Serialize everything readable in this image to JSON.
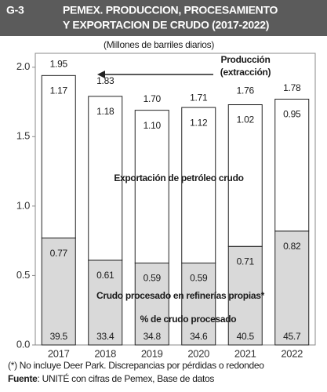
{
  "chart_data": {
    "type": "stacked_bar",
    "label": "G-3",
    "title": [
      "PEMEX. PRODUCCION, PROCESAMIENTO",
      "Y EXPORTACION DE CRUDO (2017-2022)"
    ],
    "subtitle": "(Millones de barriles diarios)",
    "annotation": [
      "Producción",
      "(extracción)"
    ],
    "categories": [
      "2017",
      "2018",
      "2019",
      "2020",
      "2021",
      "2022"
    ],
    "series": [
      {
        "name": "Crudo procesado en refinerías propias*",
        "color": "#d9d9d9",
        "values": [
          0.77,
          0.61,
          0.59,
          0.59,
          0.71,
          0.82
        ],
        "value_labels": [
          "0.77",
          "0.61",
          "0.59",
          "0.59",
          "0.71",
          "0.82"
        ]
      },
      {
        "name": "Exportación de petróleo crudo",
        "color": "#ffffff",
        "values": [
          1.17,
          1.18,
          1.1,
          1.12,
          1.02,
          0.95
        ],
        "value_labels": [
          "1.17",
          "1.18",
          "1.10",
          "1.12",
          "1.02",
          "0.95"
        ]
      }
    ],
    "totals": {
      "values": [
        1.95,
        1.83,
        1.7,
        1.71,
        1.76,
        1.78
      ],
      "value_labels": [
        "1.95",
        "1.83",
        "1.70",
        "1.71",
        "1.76",
        "1.78"
      ]
    },
    "percent": {
      "name": "% de crudo procesado",
      "values": [
        39.5,
        33.4,
        34.8,
        34.6,
        40.5,
        45.7
      ]
    },
    "ylim": [
      0,
      2.1
    ],
    "yticks": [
      {
        "value": 0,
        "label": "0.0"
      },
      0.5,
      {
        "value": 1,
        "label": "1.0"
      },
      1.5,
      {
        "value": 2,
        "label": "2.0"
      }
    ],
    "footnote": "(*) No incluye Deer Park. Discrepancias por pérdidas o redondeo",
    "source_label": "Fuente",
    "source_text": ": UNITÉ con cifras de Pemex, Base de datos"
  }
}
